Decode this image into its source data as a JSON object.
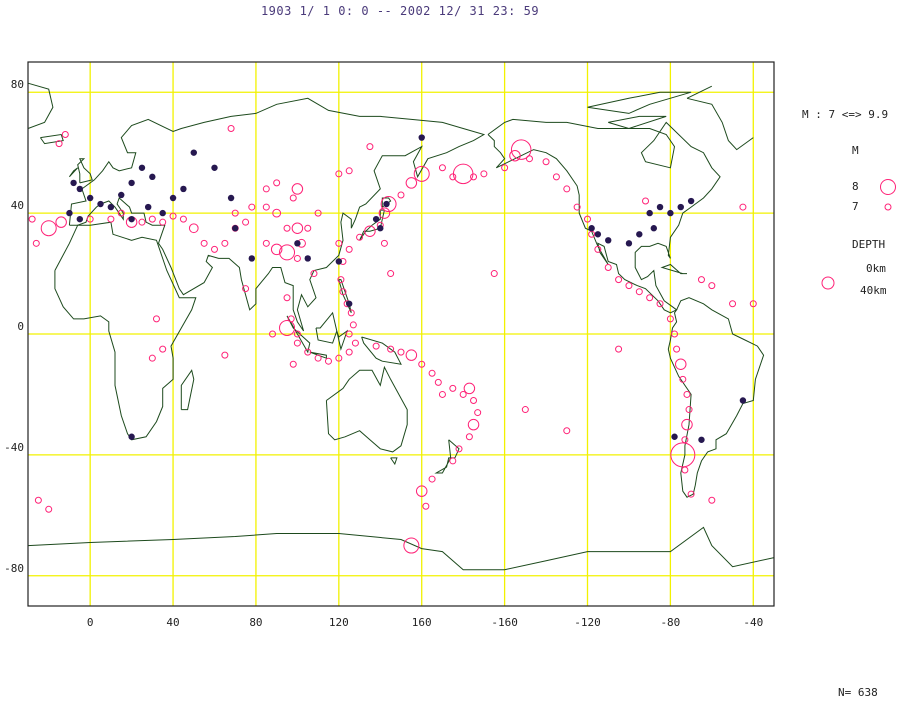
{
  "title": "1903  1/ 1  0: 0 --  2002  12/ 31  23: 59",
  "count_label": "N= 638",
  "legend": {
    "magnitude_range": "M : 7 <=> 9.9",
    "magnitude_title": "M",
    "magnitude_items": [
      {
        "label": "8",
        "magnitude": 8
      },
      {
        "label": "7",
        "magnitude": 7
      }
    ],
    "depth_title": "DEPTH",
    "depth_items": [
      "0km",
      "40km"
    ]
  },
  "colors": {
    "grid": "#f2f200",
    "coast": "#1d4a1d",
    "shallow": "#ff2277",
    "deep": "#261850",
    "frame": "#222222"
  },
  "axes": {
    "lon_ticks": [
      "0",
      "40",
      "80",
      "120",
      "160",
      "-160",
      "-120",
      "-80",
      "-40"
    ],
    "lat_ticks": [
      "80",
      "40",
      "0",
      "-40",
      "-80"
    ]
  },
  "chart_data": {
    "type": "scatter",
    "projection": "equirectangular, centered on 150E",
    "lon_range": [
      -30,
      330
    ],
    "lat_range": [
      -90,
      90
    ],
    "magnitude_range": [
      7,
      9.9
    ],
    "count": 638,
    "deep_events": [
      [
        -8,
        50
      ],
      [
        -5,
        48
      ],
      [
        0,
        45
      ],
      [
        5,
        43
      ],
      [
        10,
        42
      ],
      [
        15,
        46
      ],
      [
        20,
        50
      ],
      [
        25,
        55
      ],
      [
        30,
        52
      ],
      [
        -10,
        40
      ],
      [
        -5,
        38
      ],
      [
        20,
        38
      ],
      [
        28,
        42
      ],
      [
        35,
        40
      ],
      [
        40,
        45
      ],
      [
        45,
        48
      ],
      [
        50,
        60
      ],
      [
        60,
        55
      ],
      [
        68,
        45
      ],
      [
        70,
        35
      ],
      [
        78,
        25
      ],
      [
        100,
        30
      ],
      [
        105,
        25
      ],
      [
        138,
        38
      ],
      [
        140,
        35
      ],
      [
        143,
        43
      ],
      [
        120,
        24
      ],
      [
        125,
        10
      ],
      [
        160,
        65
      ],
      [
        -118,
        35
      ],
      [
        -115,
        33
      ],
      [
        -110,
        31
      ],
      [
        -90,
        40
      ],
      [
        -85,
        42
      ],
      [
        -80,
        40
      ],
      [
        -75,
        42
      ],
      [
        -70,
        44
      ],
      [
        -88,
        35
      ],
      [
        -100,
        30
      ],
      [
        -95,
        33
      ],
      [
        -78,
        -34
      ],
      [
        -65,
        -35
      ],
      [
        -45,
        -22
      ],
      [
        20,
        -34
      ]
    ],
    "shallow_events": [
      {
        "lon": -28,
        "lat": 38,
        "mag": 7
      },
      {
        "lon": -26,
        "lat": 30,
        "mag": 7
      },
      {
        "lon": -20,
        "lat": 35,
        "mag": 8
      },
      {
        "lon": -14,
        "lat": 37,
        "mag": 7.5
      },
      {
        "lon": -25,
        "lat": -55,
        "mag": 7
      },
      {
        "lon": -20,
        "lat": -58,
        "mag": 7
      },
      {
        "lon": -15,
        "lat": 63,
        "mag": 7
      },
      {
        "lon": -12,
        "lat": 66,
        "mag": 7
      },
      {
        "lon": 0,
        "lat": 38,
        "mag": 7
      },
      {
        "lon": 10,
        "lat": 38,
        "mag": 7
      },
      {
        "lon": 15,
        "lat": 40,
        "mag": 7
      },
      {
        "lon": 20,
        "lat": 37,
        "mag": 7.5
      },
      {
        "lon": 25,
        "lat": 37,
        "mag": 7
      },
      {
        "lon": 30,
        "lat": 38,
        "mag": 7
      },
      {
        "lon": 35,
        "lat": 37,
        "mag": 7
      },
      {
        "lon": 40,
        "lat": 39,
        "mag": 7
      },
      {
        "lon": 45,
        "lat": 38,
        "mag": 7
      },
      {
        "lon": 50,
        "lat": 35,
        "mag": 7.3
      },
      {
        "lon": 55,
        "lat": 30,
        "mag": 7
      },
      {
        "lon": 60,
        "lat": 28,
        "mag": 7
      },
      {
        "lon": 65,
        "lat": 30,
        "mag": 7
      },
      {
        "lon": 70,
        "lat": 35,
        "mag": 7
      },
      {
        "lon": 70,
        "lat": 40,
        "mag": 7
      },
      {
        "lon": 75,
        "lat": 37,
        "mag": 7
      },
      {
        "lon": 78,
        "lat": 42,
        "mag": 7
      },
      {
        "lon": 85,
        "lat": 42,
        "mag": 7
      },
      {
        "lon": 90,
        "lat": 40,
        "mag": 7.2
      },
      {
        "lon": 95,
        "lat": 35,
        "mag": 7
      },
      {
        "lon": 100,
        "lat": 35,
        "mag": 7.5
      },
      {
        "lon": 85,
        "lat": 30,
        "mag": 7
      },
      {
        "lon": 90,
        "lat": 28,
        "mag": 7.5
      },
      {
        "lon": 95,
        "lat": 27,
        "mag": 8
      },
      {
        "lon": 100,
        "lat": 25,
        "mag": 7
      },
      {
        "lon": 102,
        "lat": 30,
        "mag": 7.2
      },
      {
        "lon": 105,
        "lat": 35,
        "mag": 7
      },
      {
        "lon": 98,
        "lat": 45,
        "mag": 7
      },
      {
        "lon": 100,
        "lat": 48,
        "mag": 7.5
      },
      {
        "lon": 110,
        "lat": 40,
        "mag": 7
      },
      {
        "lon": 120,
        "lat": 30,
        "mag": 7
      },
      {
        "lon": 95,
        "lat": 12,
        "mag": 7
      },
      {
        "lon": 97,
        "lat": 5,
        "mag": 7
      },
      {
        "lon": 100,
        "lat": 0,
        "mag": 7
      },
      {
        "lon": 95,
        "lat": 2,
        "mag": 8
      },
      {
        "lon": 100,
        "lat": -3,
        "mag": 7
      },
      {
        "lon": 105,
        "lat": -6,
        "mag": 7
      },
      {
        "lon": 110,
        "lat": -8,
        "mag": 7
      },
      {
        "lon": 115,
        "lat": -9,
        "mag": 7
      },
      {
        "lon": 120,
        "lat": -8,
        "mag": 7
      },
      {
        "lon": 125,
        "lat": -6,
        "mag": 7
      },
      {
        "lon": 121,
        "lat": 18,
        "mag": 7
      },
      {
        "lon": 122,
        "lat": 14,
        "mag": 7
      },
      {
        "lon": 124,
        "lat": 10,
        "mag": 7
      },
      {
        "lon": 126,
        "lat": 7,
        "mag": 7
      },
      {
        "lon": 127,
        "lat": 3,
        "mag": 7
      },
      {
        "lon": 125,
        "lat": 0,
        "mag": 7
      },
      {
        "lon": 128,
        "lat": -3,
        "mag": 7
      },
      {
        "lon": 122,
        "lat": 24,
        "mag": 7
      },
      {
        "lon": 125,
        "lat": 28,
        "mag": 7
      },
      {
        "lon": 130,
        "lat": 32,
        "mag": 7
      },
      {
        "lon": 135,
        "lat": 34,
        "mag": 7.5
      },
      {
        "lon": 140,
        "lat": 36,
        "mag": 7
      },
      {
        "lon": 142,
        "lat": 40,
        "mag": 7.5
      },
      {
        "lon": 144,
        "lat": 43,
        "mag": 8
      },
      {
        "lon": 150,
        "lat": 46,
        "mag": 7
      },
      {
        "lon": 155,
        "lat": 50,
        "mag": 7.5
      },
      {
        "lon": 160,
        "lat": 53,
        "mag": 8
      },
      {
        "lon": 145,
        "lat": 20,
        "mag": 7
      },
      {
        "lon": 142,
        "lat": 30,
        "mag": 7
      },
      {
        "lon": 138,
        "lat": -4,
        "mag": 7
      },
      {
        "lon": 145,
        "lat": -5,
        "mag": 7
      },
      {
        "lon": 150,
        "lat": -6,
        "mag": 7
      },
      {
        "lon": 155,
        "lat": -7,
        "mag": 7.5
      },
      {
        "lon": 160,
        "lat": -10,
        "mag": 7
      },
      {
        "lon": 165,
        "lat": -13,
        "mag": 7
      },
      {
        "lon": 168,
        "lat": -16,
        "mag": 7
      },
      {
        "lon": 170,
        "lat": -20,
        "mag": 7
      },
      {
        "lon": 175,
        "lat": -18,
        "mag": 7
      },
      {
        "lon": 180,
        "lat": -20,
        "mag": 7
      },
      {
        "lon": 183,
        "lat": -18,
        "mag": 7.5
      },
      {
        "lon": 185,
        "lat": -22,
        "mag": 7
      },
      {
        "lon": 187,
        "lat": -26,
        "mag": 7
      },
      {
        "lon": 185,
        "lat": -30,
        "mag": 7.5
      },
      {
        "lon": 183,
        "lat": -34,
        "mag": 7
      },
      {
        "lon": 178,
        "lat": -38,
        "mag": 7
      },
      {
        "lon": 175,
        "lat": -42,
        "mag": 7
      },
      {
        "lon": 165,
        "lat": -48,
        "mag": 7
      },
      {
        "lon": 160,
        "lat": -52,
        "mag": 7.5
      },
      {
        "lon": 162,
        "lat": -57,
        "mag": 7
      },
      {
        "lon": 155,
        "lat": -70,
        "mag": 8
      },
      {
        "lon": 170,
        "lat": 55,
        "mag": 7
      },
      {
        "lon": 175,
        "lat": 52,
        "mag": 7
      },
      {
        "lon": 180,
        "lat": 53,
        "mag": 8.5
      },
      {
        "lon": 185,
        "lat": 52,
        "mag": 7
      },
      {
        "lon": 190,
        "lat": 53,
        "mag": 7
      },
      {
        "lon": 200,
        "lat": 55,
        "mag": 7
      },
      {
        "lon": 205,
        "lat": 59,
        "mag": 7.5
      },
      {
        "lon": 208,
        "lat": 61,
        "mag": 8.5
      },
      {
        "lon": 212,
        "lat": 58,
        "mag": 7
      },
      {
        "lon": 220,
        "lat": 57,
        "mag": 7
      },
      {
        "lon": 225,
        "lat": 52,
        "mag": 7
      },
      {
        "lon": 230,
        "lat": 48,
        "mag": 7
      },
      {
        "lon": 235,
        "lat": 42,
        "mag": 7
      },
      {
        "lon": 240,
        "lat": 38,
        "mag": 7
      },
      {
        "lon": 242,
        "lat": 33,
        "mag": 7
      },
      {
        "lon": 245,
        "lat": 28,
        "mag": 7
      },
      {
        "lon": 250,
        "lat": 22,
        "mag": 7
      },
      {
        "lon": 255,
        "lat": 18,
        "mag": 7
      },
      {
        "lon": 260,
        "lat": 16,
        "mag": 7
      },
      {
        "lon": 265,
        "lat": 14,
        "mag": 7
      },
      {
        "lon": 270,
        "lat": 12,
        "mag": 7
      },
      {
        "lon": 275,
        "lat": 10,
        "mag": 7
      },
      {
        "lon": 280,
        "lat": 5,
        "mag": 7
      },
      {
        "lon": 282,
        "lat": 0,
        "mag": 7
      },
      {
        "lon": 283,
        "lat": -5,
        "mag": 7
      },
      {
        "lon": 285,
        "lat": -10,
        "mag": 7.5
      },
      {
        "lon": 286,
        "lat": -15,
        "mag": 7
      },
      {
        "lon": 288,
        "lat": -20,
        "mag": 7
      },
      {
        "lon": 289,
        "lat": -25,
        "mag": 7
      },
      {
        "lon": 288,
        "lat": -30,
        "mag": 7.5
      },
      {
        "lon": 287,
        "lat": -35,
        "mag": 7
      },
      {
        "lon": 286,
        "lat": -40,
        "mag": 9
      },
      {
        "lon": 287,
        "lat": -45,
        "mag": 7
      },
      {
        "lon": 290,
        "lat": -53,
        "mag": 7
      },
      {
        "lon": 300,
        "lat": -55,
        "mag": 7
      },
      {
        "lon": 295,
        "lat": 18,
        "mag": 7
      },
      {
        "lon": 300,
        "lat": 16,
        "mag": 7
      },
      {
        "lon": 310,
        "lat": 10,
        "mag": 7
      },
      {
        "lon": 315,
        "lat": 42,
        "mag": 7
      },
      {
        "lon": 320,
        "lat": 10,
        "mag": 7
      },
      {
        "lon": 195,
        "lat": 20,
        "mag": 7
      },
      {
        "lon": 230,
        "lat": -32,
        "mag": 7
      },
      {
        "lon": 210,
        "lat": -25,
        "mag": 7
      },
      {
        "lon": 32,
        "lat": 5,
        "mag": 7
      },
      {
        "lon": 30,
        "lat": -8,
        "mag": 7
      },
      {
        "lon": 35,
        "lat": -5,
        "mag": 7
      },
      {
        "lon": 65,
        "lat": -7,
        "mag": 7
      },
      {
        "lon": 68,
        "lat": 68,
        "mag": 7
      },
      {
        "lon": 135,
        "lat": 62,
        "mag": 7
      },
      {
        "lon": 120,
        "lat": 53,
        "mag": 7
      },
      {
        "lon": 125,
        "lat": 54,
        "mag": 7
      },
      {
        "lon": 85,
        "lat": 48,
        "mag": 7
      },
      {
        "lon": 90,
        "lat": 50,
        "mag": 7
      },
      {
        "lon": 75,
        "lat": 15,
        "mag": 7
      },
      {
        "lon": 88,
        "lat": 0,
        "mag": 7
      },
      {
        "lon": 108,
        "lat": 20,
        "mag": 7
      },
      {
        "lon": 98,
        "lat": -10,
        "mag": 7
      },
      {
        "lon": 255,
        "lat": -5,
        "mag": 7
      },
      {
        "lon": 268,
        "lat": 44,
        "mag": 7
      }
    ]
  }
}
